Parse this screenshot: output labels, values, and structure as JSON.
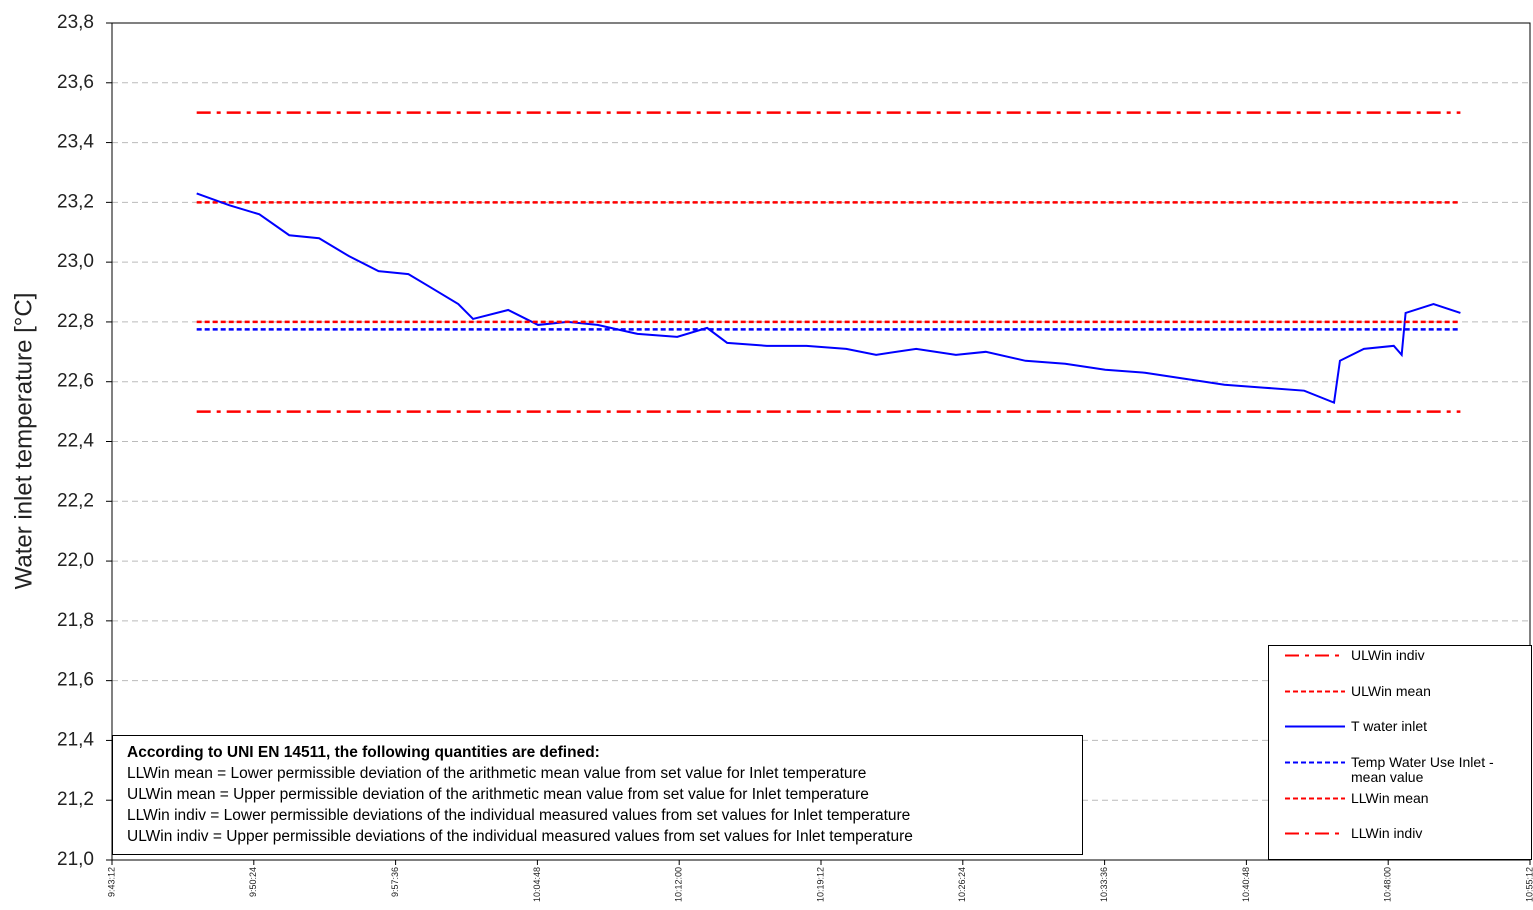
{
  "chart_data": {
    "type": "line",
    "ylabel": "Water inlet temperature [°C]",
    "ylim": [
      21.0,
      23.8
    ],
    "yticks": [
      {
        "value": 21.0,
        "label": "21,0"
      },
      {
        "value": 21.2,
        "label": "21,2"
      },
      {
        "value": 21.4,
        "label": "21,4"
      },
      {
        "value": 21.6,
        "label": "21,6"
      },
      {
        "value": 21.8,
        "label": "21,8"
      },
      {
        "value": 22.0,
        "label": "22,0"
      },
      {
        "value": 22.2,
        "label": "22,2"
      },
      {
        "value": 22.4,
        "label": "22,4"
      },
      {
        "value": 22.6,
        "label": "22,6"
      },
      {
        "value": 22.8,
        "label": "22,8"
      },
      {
        "value": 23.0,
        "label": "23,0"
      },
      {
        "value": 23.2,
        "label": "23,2"
      },
      {
        "value": 23.4,
        "label": "23,4"
      },
      {
        "value": 23.6,
        "label": "23,6"
      },
      {
        "value": 23.8,
        "label": "23,8"
      }
    ],
    "xlim": [
      34992,
      39312
    ],
    "xticks": [
      {
        "value": 34992,
        "label": "9:43:12"
      },
      {
        "value": 35424,
        "label": "9:50:24"
      },
      {
        "value": 35856,
        "label": "9:57:36"
      },
      {
        "value": 36288,
        "label": "10:04:48"
      },
      {
        "value": 36720,
        "label": "10:12:00"
      },
      {
        "value": 37152,
        "label": "10:19:12"
      },
      {
        "value": 37584,
        "label": "10:26:24"
      },
      {
        "value": 38016,
        "label": "10:33:36"
      },
      {
        "value": 38448,
        "label": "10:40:48"
      },
      {
        "value": 38880,
        "label": "10:48:00"
      },
      {
        "value": 39312,
        "label": "10:55:12"
      }
    ],
    "grid": true,
    "legend": "lower right",
    "series": [
      {
        "name": "ULWin indiv",
        "color": "#ff0000",
        "linestyle": "dashdot",
        "x": [
          35250,
          39100
        ],
        "values": [
          23.5,
          23.5
        ]
      },
      {
        "name": "ULWin mean",
        "color": "#ff0000",
        "linestyle": "dotted",
        "x": [
          35250,
          39100
        ],
        "values": [
          23.2,
          23.2
        ]
      },
      {
        "name": "T water inlet",
        "color": "#0000ff",
        "linestyle": "solid",
        "x": [
          35250,
          35350,
          35441,
          35532,
          35623,
          35714,
          35804,
          35895,
          35956,
          36047,
          36092,
          36199,
          36290,
          36380,
          36471,
          36593,
          36714,
          36805,
          36866,
          36987,
          37108,
          37229,
          37320,
          37442,
          37563,
          37654,
          37775,
          37896,
          38018,
          38139,
          38260,
          38381,
          38503,
          38624,
          38715,
          38733,
          38806,
          38897,
          38921,
          38933,
          39018,
          39100
        ],
        "values": [
          23.23,
          23.19,
          23.16,
          23.09,
          23.08,
          23.02,
          22.97,
          22.96,
          22.92,
          22.86,
          22.81,
          22.84,
          22.79,
          22.8,
          22.79,
          22.76,
          22.75,
          22.78,
          22.73,
          22.72,
          22.72,
          22.71,
          22.69,
          22.71,
          22.69,
          22.7,
          22.67,
          22.66,
          22.64,
          22.63,
          22.61,
          22.59,
          22.58,
          22.57,
          22.53,
          22.67,
          22.71,
          22.72,
          22.69,
          22.83,
          22.86,
          22.83
        ]
      },
      {
        "name": "Temp Water Use Inlet - mean value",
        "color": "#0000ff",
        "linestyle": "dotted",
        "x": [
          35250,
          39100
        ],
        "values": [
          22.775,
          22.775
        ]
      },
      {
        "name": "LLWin mean",
        "color": "#ff0000",
        "linestyle": "dotted",
        "x": [
          35250,
          39100
        ],
        "values": [
          22.8,
          22.8
        ]
      },
      {
        "name": "LLWin indiv",
        "color": "#ff0000",
        "linestyle": "dashdot",
        "x": [
          35250,
          39100
        ],
        "values": [
          22.5,
          22.5
        ]
      }
    ],
    "annotation": {
      "title": "According  to UNI EN 14511, the following quantities are defined:",
      "lines": [
        "LLWin mean = Lower permissible deviation of the arithmetic mean value from set value  for Inlet  temperature",
        "ULWin mean = Upper permissible deviation of the arithmetic mean value from set value  for Inlet  temperature",
        "LLWin indiv = Lower permissible deviations of the individual measured values from set  values  for  Inlet temperature",
        "ULWin indiv = Upper permissible deviations of the individual measured values from set  values  for  Inlet temperature"
      ]
    }
  }
}
